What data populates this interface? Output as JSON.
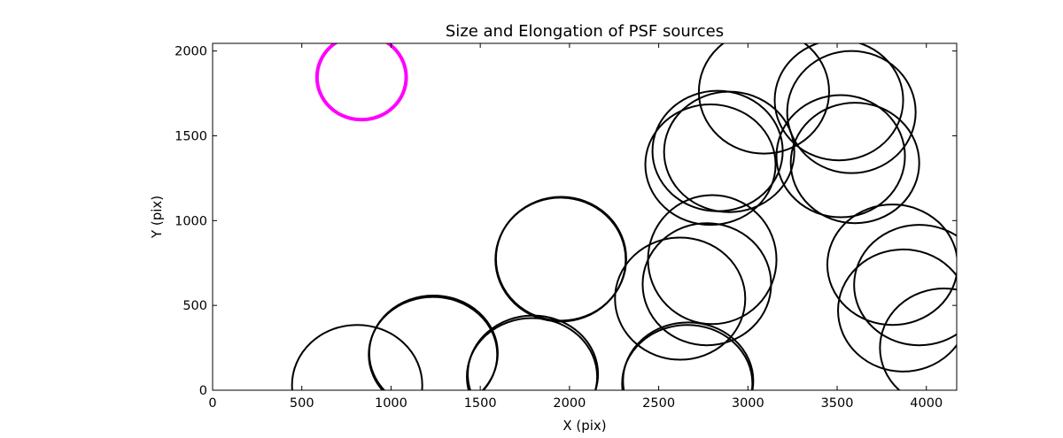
{
  "chart_data": {
    "type": "scatter",
    "title": "Size and Elongation of PSF sources",
    "xlabel": "X (pix)",
    "ylabel": "Y (pix)",
    "xlim": [
      0,
      4170
    ],
    "ylim": [
      0,
      2045
    ],
    "x_ticks": [
      "0",
      "500",
      "1000",
      "1500",
      "2000",
      "2500",
      "3000",
      "3500",
      "4000"
    ],
    "x_tick_values": [
      0,
      500,
      1000,
      1500,
      2000,
      2500,
      3000,
      3500,
      4000
    ],
    "y_ticks": [
      "0",
      "500",
      "1000",
      "1500",
      "2000"
    ],
    "y_tick_values": [
      0,
      500,
      1000,
      1500,
      2000
    ],
    "grid": false,
    "reference_source": {
      "x": 835,
      "y": 1845,
      "rx": 250,
      "ry": 250,
      "color": "#ff00ff"
    },
    "sources": [
      {
        "x": 810,
        "y": 30,
        "rx": 365,
        "ry": 355
      },
      {
        "x": 1235,
        "y": 210,
        "rx": 360,
        "ry": 340
      },
      {
        "x": 1238,
        "y": 218,
        "rx": 360,
        "ry": 340
      },
      {
        "x": 1790,
        "y": 80,
        "rx": 365,
        "ry": 345
      },
      {
        "x": 1795,
        "y": 95,
        "rx": 365,
        "ry": 345
      },
      {
        "x": 1950,
        "y": 770,
        "rx": 365,
        "ry": 365
      },
      {
        "x": 1953,
        "y": 775,
        "rx": 365,
        "ry": 365
      },
      {
        "x": 2660,
        "y": 40,
        "rx": 365,
        "ry": 345
      },
      {
        "x": 2665,
        "y": 55,
        "rx": 365,
        "ry": 345
      },
      {
        "x": 2620,
        "y": 540,
        "rx": 365,
        "ry": 360
      },
      {
        "x": 2770,
        "y": 625,
        "rx": 360,
        "ry": 360
      },
      {
        "x": 2800,
        "y": 770,
        "rx": 360,
        "ry": 380
      },
      {
        "x": 2830,
        "y": 1410,
        "rx": 365,
        "ry": 355
      },
      {
        "x": 2895,
        "y": 1405,
        "rx": 365,
        "ry": 355
      },
      {
        "x": 2790,
        "y": 1330,
        "rx": 365,
        "ry": 355
      },
      {
        "x": 3090,
        "y": 1760,
        "rx": 365,
        "ry": 365
      },
      {
        "x": 3510,
        "y": 1710,
        "rx": 360,
        "ry": 355
      },
      {
        "x": 3580,
        "y": 1640,
        "rx": 360,
        "ry": 360
      },
      {
        "x": 3520,
        "y": 1380,
        "rx": 360,
        "ry": 360
      },
      {
        "x": 3600,
        "y": 1340,
        "rx": 360,
        "ry": 355
      },
      {
        "x": 3810,
        "y": 740,
        "rx": 365,
        "ry": 355
      },
      {
        "x": 3960,
        "y": 620,
        "rx": 365,
        "ry": 355
      },
      {
        "x": 3870,
        "y": 470,
        "rx": 365,
        "ry": 360
      },
      {
        "x": 4100,
        "y": 250,
        "rx": 360,
        "ry": 350
      }
    ]
  }
}
